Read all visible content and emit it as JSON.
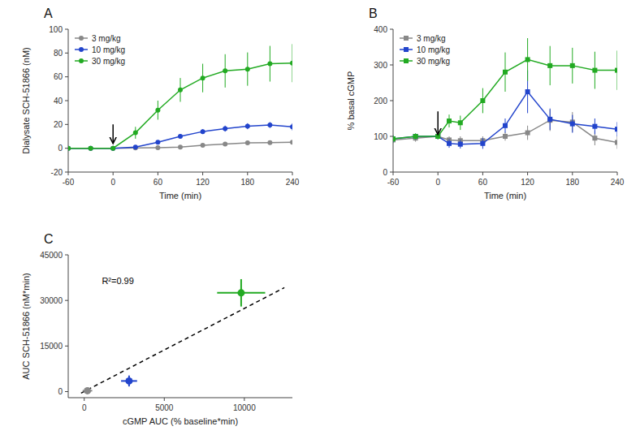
{
  "chart_data": [
    {
      "type": "line",
      "title": "A",
      "x_label": "Time (min)",
      "y_label": "Dialysate SCH-51866 (nM)",
      "xlim": [
        -60,
        240
      ],
      "ylim": [
        -20,
        100
      ],
      "xticks": [
        -60,
        0,
        60,
        120,
        180,
        240
      ],
      "yticks": [
        -20,
        0,
        20,
        40,
        60,
        80,
        100
      ],
      "legend": "upper left",
      "marker": "circle",
      "x": [
        -60,
        -30,
        0,
        30,
        60,
        90,
        120,
        150,
        180,
        210,
        240
      ],
      "series": [
        {
          "name": "3 mg/kg",
          "color": "#888888",
          "values": [
            0.0,
            0.0,
            0.0,
            0.2,
            0.5,
            1.0,
            2.5,
            3.5,
            4.5,
            4.8,
            5.0
          ],
          "yerr": [
            0.1,
            0.1,
            0.1,
            0.2,
            0.3,
            0.5,
            0.8,
            1.0,
            1.2,
            1.2,
            1.3
          ]
        },
        {
          "name": "10 mg/kg",
          "color": "#2244cc",
          "values": [
            0.0,
            0.0,
            0.0,
            1.0,
            5.0,
            10.0,
            14.0,
            16.5,
            18.5,
            19.5,
            18.0
          ],
          "yerr": [
            0.2,
            0.2,
            0.2,
            0.5,
            1.0,
            1.5,
            2.0,
            2.5,
            2.5,
            2.5,
            3.0
          ]
        },
        {
          "name": "30 mg/kg",
          "color": "#22aa22",
          "values": [
            0.0,
            0.0,
            0.0,
            13.0,
            32.0,
            49.0,
            59.0,
            65.0,
            66.5,
            71.0,
            71.5
          ],
          "yerr": [
            0.5,
            0.5,
            0.5,
            5.0,
            8.0,
            10.0,
            12.0,
            14.0,
            14.0,
            15.0,
            16.0
          ]
        }
      ],
      "arrow": {
        "x": 0,
        "y_start": 20,
        "y_end": 4
      }
    },
    {
      "type": "line",
      "title": "B",
      "x_label": "Time (min)",
      "y_label": "% basal cGMP",
      "xlim": [
        -60,
        240
      ],
      "ylim": [
        0,
        400
      ],
      "xticks": [
        -60,
        0,
        60,
        120,
        180,
        240
      ],
      "yticks": [
        0,
        100,
        200,
        300,
        400
      ],
      "legend": "upper left",
      "marker": "square",
      "x": [
        -60,
        -30,
        0,
        15,
        30,
        60,
        90,
        120,
        150,
        180,
        210,
        240
      ],
      "series": [
        {
          "name": "3 mg/kg",
          "color": "#888888",
          "values": [
            90,
            95,
            100,
            90,
            88,
            88,
            100,
            110,
            145,
            140,
            95,
            83
          ],
          "yerr": [
            10,
            10,
            8,
            10,
            12,
            12,
            12,
            20,
            30,
            28,
            20,
            18
          ]
        },
        {
          "name": "10 mg/kg",
          "color": "#2244cc",
          "values": [
            93,
            100,
            100,
            80,
            78,
            80,
            130,
            225,
            148,
            135,
            128,
            120
          ],
          "yerr": [
            10,
            8,
            8,
            12,
            12,
            15,
            20,
            60,
            30,
            25,
            22,
            20
          ]
        },
        {
          "name": "30 mg/kg",
          "color": "#22aa22",
          "values": [
            93,
            100,
            100,
            143,
            138,
            200,
            280,
            315,
            298,
            298,
            285,
            285
          ],
          "yerr": [
            10,
            8,
            8,
            18,
            20,
            35,
            55,
            60,
            55,
            50,
            52,
            55
          ]
        }
      ],
      "arrow": {
        "x": 0,
        "y_start": 170,
        "y_end": 105
      }
    },
    {
      "type": "scatter",
      "title": "C",
      "x_label": "cGMP AUC (% baseline*min)",
      "y_label": "AUC SCH-51866 (nM*min)",
      "xlim": [
        -1000,
        13000
      ],
      "ylim": [
        -2000,
        45000
      ],
      "xticks": [
        0,
        5000,
        10000
      ],
      "yticks": [
        0,
        15000,
        30000,
        45000
      ],
      "annotation": "R²=0.99",
      "series": [
        {
          "type": "line",
          "line_style": "dashed",
          "color": "black",
          "x": [
            -200,
            12500
          ],
          "values": [
            -500,
            34200
          ]
        },
        {
          "color": "#888888",
          "marker": "circle",
          "x": [
            200
          ],
          "values": [
            300
          ],
          "xerr": [
            300
          ],
          "yerr": [
            500
          ]
        },
        {
          "color": "#2244cc",
          "marker": "circle",
          "x": [
            2800
          ],
          "values": [
            3500
          ],
          "xerr": [
            500
          ],
          "yerr": [
            1800
          ]
        },
        {
          "color": "#22aa22",
          "marker": "circle",
          "x": [
            9800
          ],
          "values": [
            32500
          ],
          "xerr": [
            1500
          ],
          "yerr": [
            4500
          ]
        }
      ]
    }
  ]
}
